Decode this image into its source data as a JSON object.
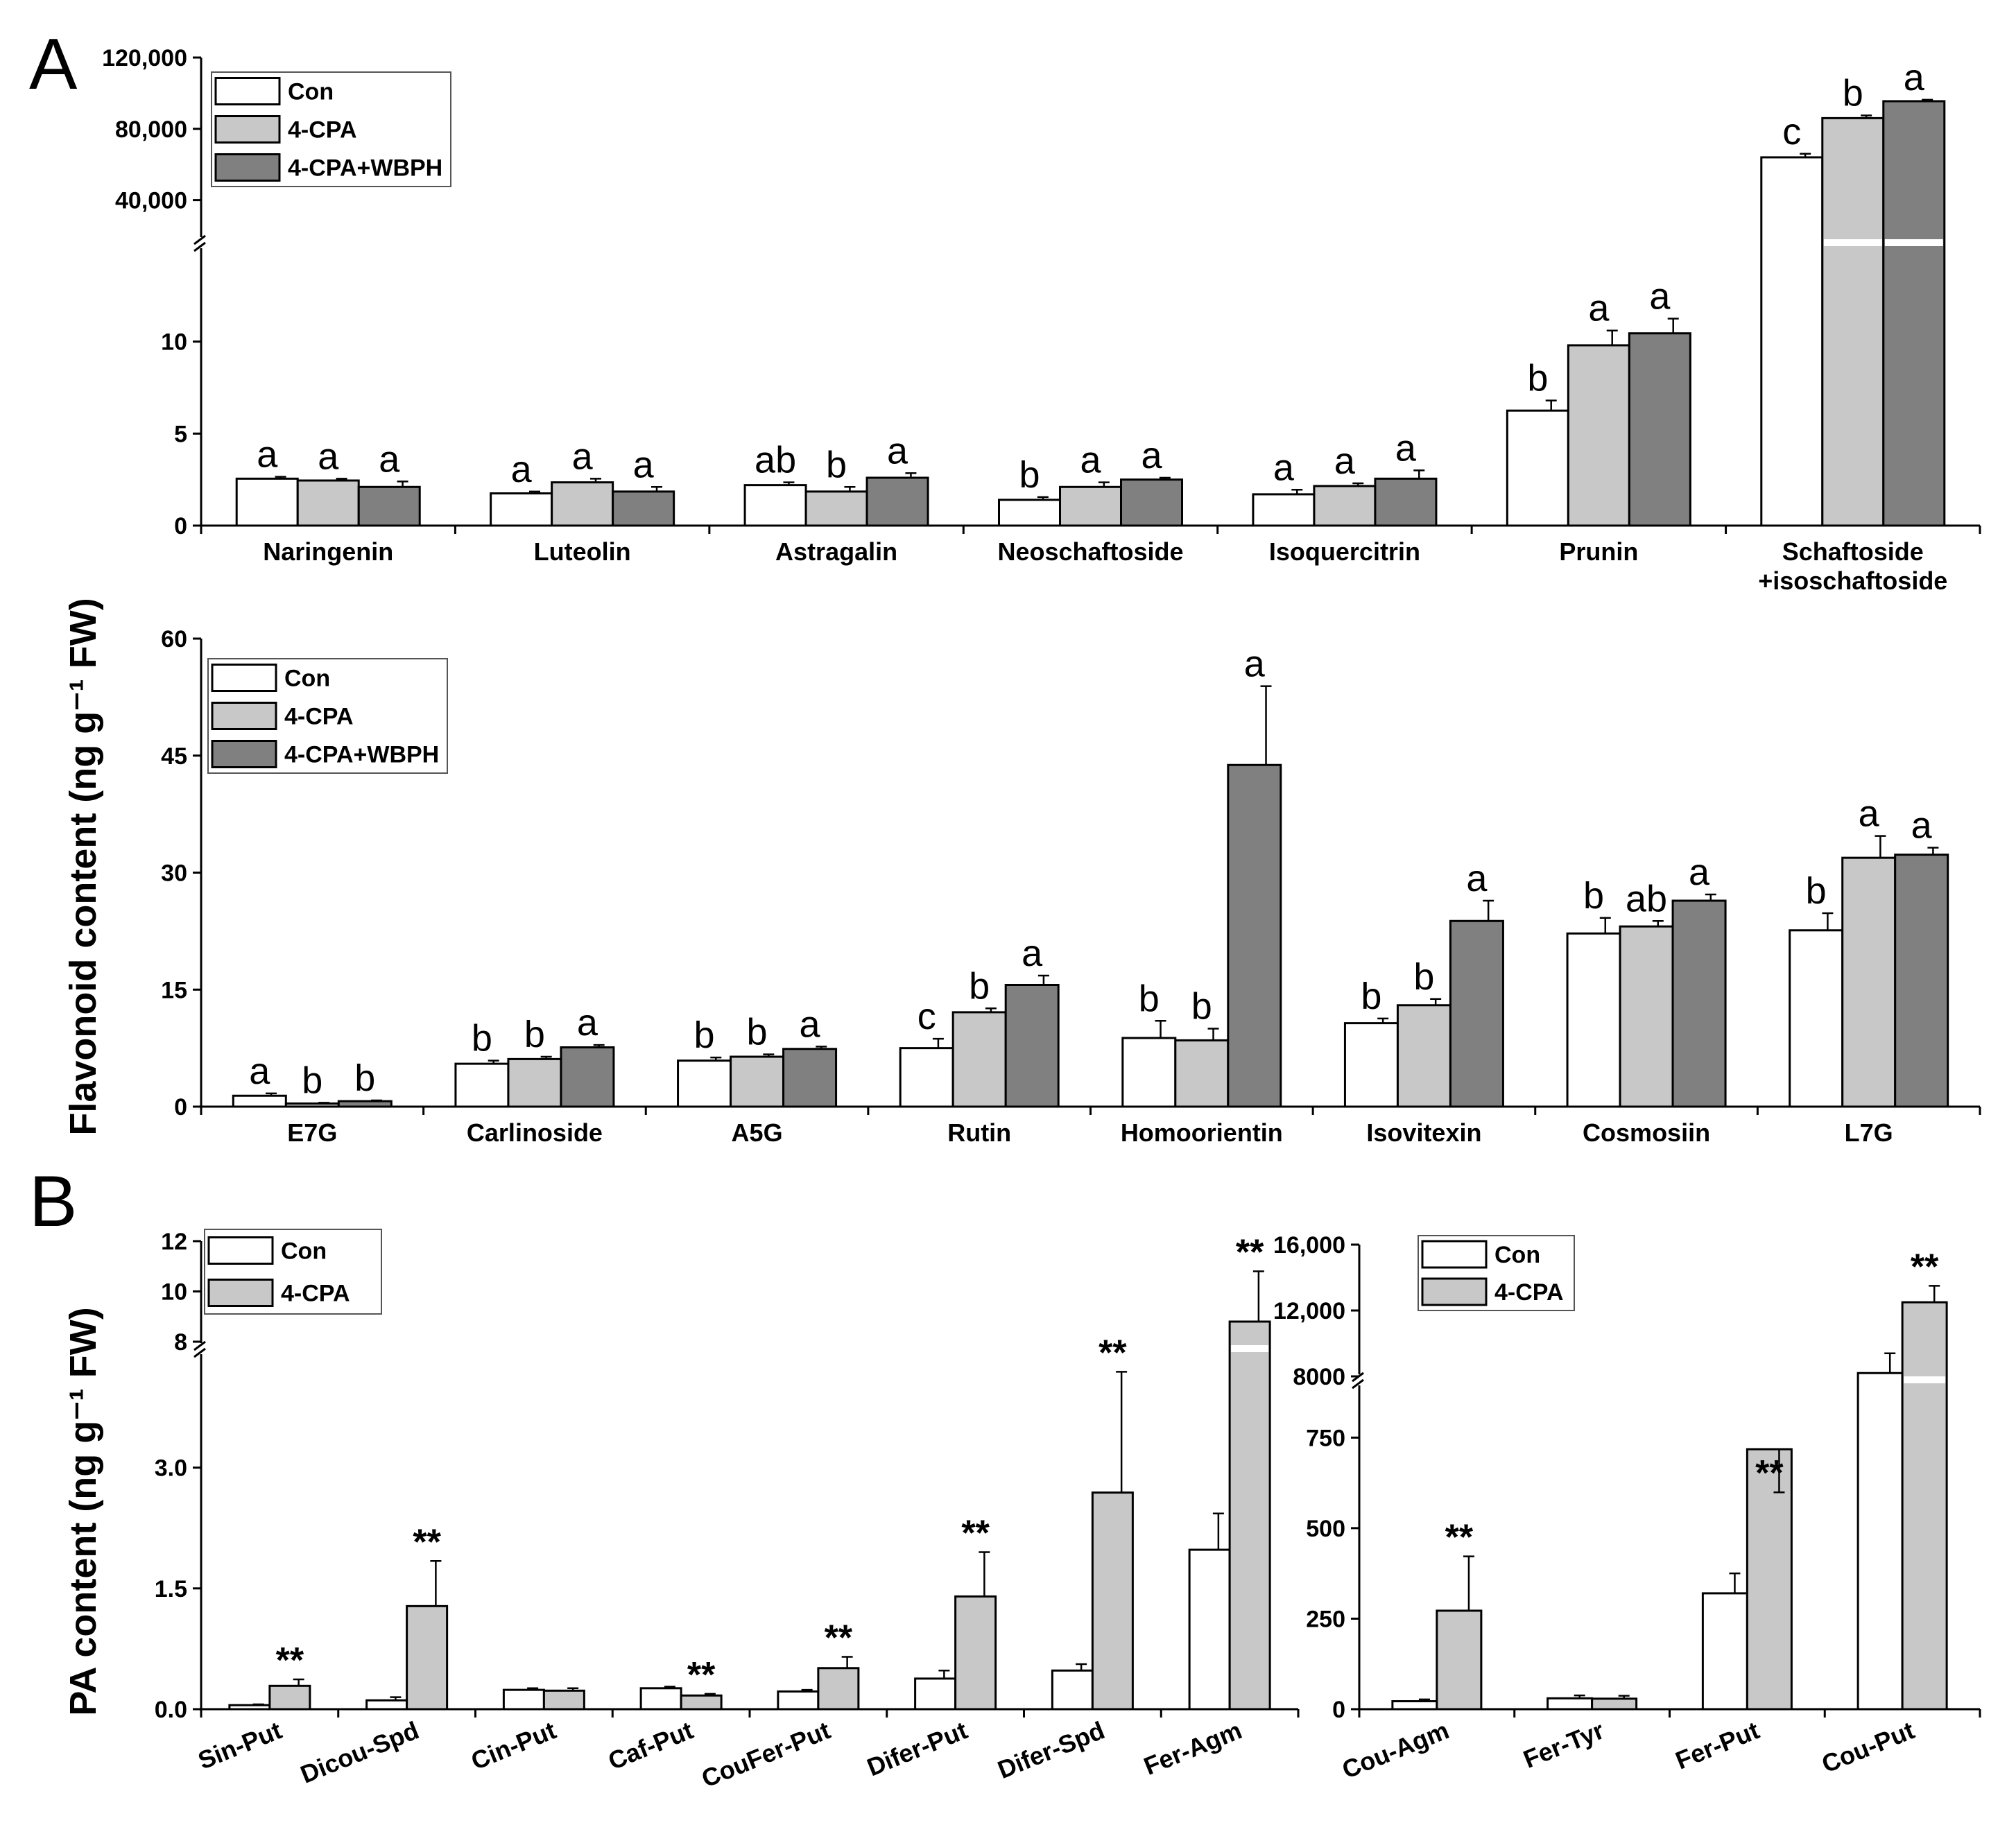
{
  "panel_labels": [
    "A",
    "B"
  ],
  "y_axis_labels": {
    "flavonoid": "Flavonoid content (ng g⁻¹ FW)",
    "pa": "PA content (ng g⁻¹ FW)"
  },
  "colors": {
    "Con": "#ffffff",
    "4-CPA": "#c8c8c8",
    "4-CPA+WBPH": "#808080"
  },
  "chart_data": [
    {
      "type": "bar",
      "panel": "A",
      "ylabel": "Flavonoid content (ng g⁻¹ FW)",
      "axis_break": {
        "lower_range": [
          0,
          15
        ],
        "upper_range": [
          20000,
          120000
        ]
      },
      "lower_ticks": [
        0,
        5,
        10
      ],
      "upper_ticks": [
        "40,000",
        "80,000",
        "120,000"
      ],
      "upper_tick_values": [
        40000,
        80000,
        120000
      ],
      "legend": {
        "entries": [
          "Con",
          "4-CPA",
          "4-CPA+WBPH"
        ],
        "position": "top-left"
      },
      "categories": [
        "Naringenin",
        "Luteolin",
        "Astragalin",
        "Neoschaftoside",
        "Isoquercitrin",
        "Prunin",
        "Schaftoside\n+isoschaftoside"
      ],
      "series": [
        {
          "name": "Con",
          "values": [
            2.55,
            1.75,
            2.2,
            1.4,
            1.7,
            6.25,
            64000
          ],
          "errors": [
            0.1,
            0.1,
            0.15,
            0.15,
            0.25,
            0.55,
            2000
          ],
          "letters": [
            "a",
            "a",
            "ab",
            "b",
            "a",
            "b",
            "c"
          ]
        },
        {
          "name": "4-CPA",
          "values": [
            2.45,
            2.35,
            1.85,
            2.1,
            2.15,
            9.8,
            86000
          ],
          "errors": [
            0.1,
            0.2,
            0.25,
            0.25,
            0.15,
            0.8,
            1500
          ],
          "letters": [
            "a",
            "a",
            "b",
            "a",
            "a",
            "a",
            "b"
          ]
        },
        {
          "name": "4-CPA+WBPH",
          "values": [
            2.1,
            1.85,
            2.6,
            2.5,
            2.55,
            10.45,
            95500
          ],
          "errors": [
            0.3,
            0.25,
            0.25,
            0.1,
            0.45,
            0.8,
            800
          ],
          "letters": [
            "a",
            "a",
            "a",
            "a",
            "a",
            "a",
            "a"
          ]
        }
      ]
    },
    {
      "type": "bar",
      "panel": "A",
      "ylim": [
        0,
        60
      ],
      "ticks": [
        0,
        15,
        30,
        45,
        60
      ],
      "legend": {
        "entries": [
          "Con",
          "4-CPA",
          "4-CPA+WBPH"
        ],
        "position": "top-left"
      },
      "categories": [
        "E7G",
        "Carlinoside",
        "A5G",
        "Rutin",
        "Homoorientin",
        "Isovitexin",
        "Cosmosiin",
        "L7G"
      ],
      "series": [
        {
          "name": "Con",
          "values": [
            1.4,
            5.5,
            5.9,
            7.5,
            8.8,
            10.7,
            22.2,
            22.6
          ],
          "errors": [
            0.3,
            0.4,
            0.4,
            1.2,
            2.2,
            0.6,
            2.0,
            2.2
          ],
          "letters": [
            "a",
            "b",
            "b",
            "c",
            "b",
            "b",
            "b",
            "b"
          ]
        },
        {
          "name": "4-CPA",
          "values": [
            0.4,
            6.1,
            6.4,
            12.1,
            8.5,
            13.0,
            23.1,
            31.9
          ],
          "errors": [
            0.1,
            0.3,
            0.3,
            0.5,
            1.5,
            0.8,
            0.7,
            2.8
          ],
          "letters": [
            "b",
            "b",
            "b",
            "b",
            "b",
            "b",
            "ab",
            "a"
          ]
        },
        {
          "name": "4-CPA+WBPH",
          "values": [
            0.7,
            7.6,
            7.4,
            15.6,
            43.8,
            23.8,
            26.4,
            32.3
          ],
          "errors": [
            0.1,
            0.3,
            0.3,
            1.2,
            10.1,
            2.6,
            0.8,
            0.9
          ],
          "letters": [
            "b",
            "a",
            "a",
            "a",
            "a",
            "a",
            "a",
            "a"
          ]
        }
      ]
    },
    {
      "type": "bar",
      "panel": "B",
      "ylabel": "PA content (ng g⁻¹ FW)",
      "axis_break": {
        "lower_range": [
          0,
          4.4
        ],
        "upper_range": [
          8,
          12
        ]
      },
      "lower_ticks": [
        "0.0",
        "1.5",
        "3.0"
      ],
      "lower_tick_values": [
        0,
        1.5,
        3.0
      ],
      "upper_ticks": [
        "8",
        "10",
        "12"
      ],
      "upper_tick_values": [
        8,
        10,
        12
      ],
      "legend": {
        "entries": [
          "Con",
          "4-CPA"
        ],
        "position": "top-left"
      },
      "categories": [
        "Sin-Put",
        "Dicou-Spd",
        "Cin-Put",
        "Caf-Put",
        "CouFer-Put",
        "Difer-Put",
        "Difer-Spd",
        "Fer-Agm"
      ],
      "series": [
        {
          "name": "Con",
          "values": [
            0.05,
            0.11,
            0.24,
            0.26,
            0.22,
            0.38,
            0.48,
            1.98
          ],
          "errors": [
            0.01,
            0.04,
            0.02,
            0.02,
            0.02,
            0.1,
            0.08,
            0.45
          ]
        },
        {
          "name": "4-CPA",
          "values": [
            0.29,
            1.28,
            0.23,
            0.17,
            0.51,
            1.4,
            2.69,
            8.8
          ],
          "errors": [
            0.08,
            0.56,
            0.03,
            0.02,
            0.14,
            0.55,
            1.5,
            2.0
          ]
        }
      ],
      "significance": [
        "**",
        "**",
        "",
        "**",
        "**",
        "**",
        "**",
        "**"
      ]
    },
    {
      "type": "bar",
      "panel": "B",
      "axis_break": {
        "lower_range": [
          0,
          900
        ],
        "upper_range": [
          8000,
          16000
        ]
      },
      "lower_ticks": [
        "0",
        "250",
        "500",
        "750"
      ],
      "lower_tick_values": [
        0,
        250,
        500,
        750
      ],
      "upper_ticks": [
        "8000",
        "12,000",
        "16,000"
      ],
      "upper_tick_values": [
        8000,
        12000,
        16000
      ],
      "legend": {
        "entries": [
          "Con",
          "4-CPA"
        ],
        "position": "top-left"
      },
      "categories": [
        "Cou-Agm",
        "Fer-Tyr",
        "Fer-Put",
        "Cou-Put"
      ],
      "series": [
        {
          "name": "Con",
          "values": [
            22,
            30,
            320,
            8200
          ],
          "errors": [
            5,
            8,
            55,
            1200
          ]
        },
        {
          "name": "4-CPA",
          "values": [
            272,
            29,
            718,
            12500
          ],
          "errors": [
            150,
            8,
            240,
            1000
          ]
        }
      ],
      "significance": [
        "**",
        "",
        "**",
        "**"
      ]
    }
  ]
}
